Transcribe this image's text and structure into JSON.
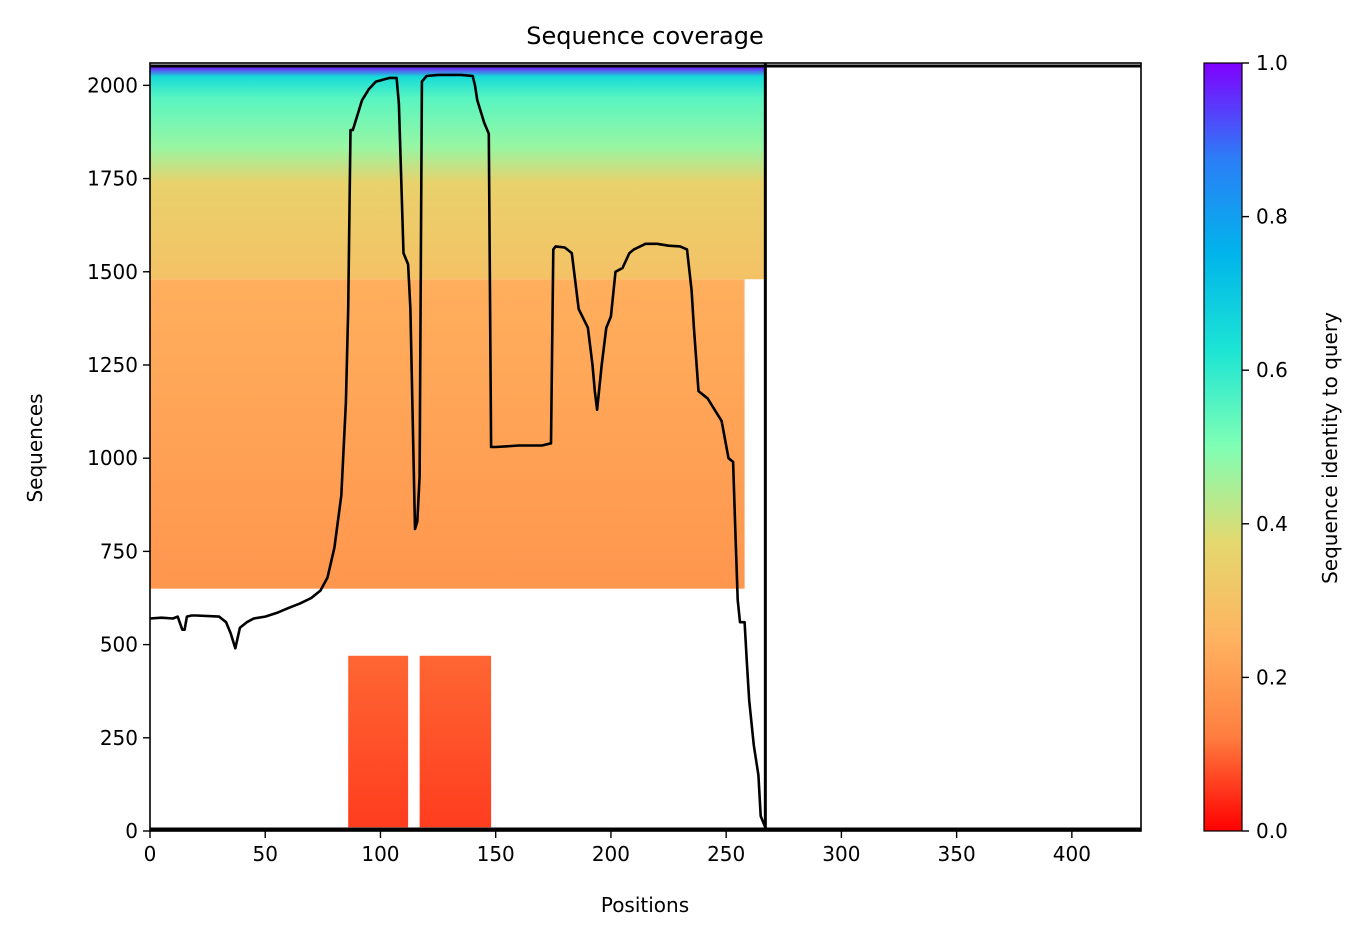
{
  "chart_data": {
    "type": "heatmap",
    "title": "Sequence coverage",
    "xlabel": "Positions",
    "ylabel": "Sequences",
    "xlim": [
      0,
      430
    ],
    "ylim": [
      0,
      2060
    ],
    "x_ticks": [
      0,
      50,
      100,
      150,
      200,
      250,
      300,
      350,
      400
    ],
    "y_ticks": [
      0,
      250,
      500,
      750,
      1000,
      1250,
      1500,
      1750,
      2000
    ],
    "colorbar": {
      "label": "Sequence identity to query",
      "range": [
        0,
        1
      ],
      "ticks": [
        "0.0",
        "0.2",
        "0.4",
        "0.6",
        "0.8",
        "1.0"
      ],
      "colormap": "rainbow_r",
      "colors": [
        "#ff0000",
        "#ff7f40",
        "#ffb360",
        "#e4d86e",
        "#80ffb4",
        "#1ce5d4",
        "#00b5eb",
        "#2c7ef7",
        "#8000ff"
      ]
    },
    "query_length": 267,
    "coverage_blocks": [
      {
        "x": [
          0,
          267
        ],
        "seq": [
          1480,
          2052
        ],
        "identity_top": 1.0,
        "identity_bottom": 0.3
      },
      {
        "x": [
          0,
          258
        ],
        "seq": [
          650,
          1480
        ],
        "identity_top": 0.24,
        "identity_bottom": 0.18
      },
      {
        "x": [
          86,
          112
        ],
        "seq": [
          10,
          470
        ],
        "identity_top": 0.1,
        "identity_bottom": 0.06
      },
      {
        "x": [
          117,
          148
        ],
        "seq": [
          10,
          470
        ],
        "identity_top": 0.1,
        "identity_bottom": 0.06
      }
    ],
    "coverage_series": {
      "name": "coverage",
      "x": [
        0,
        5,
        10,
        12,
        14,
        15,
        16,
        18,
        20,
        30,
        33,
        35,
        37,
        39,
        42,
        45,
        50,
        55,
        60,
        65,
        70,
        74,
        77,
        80,
        83,
        85,
        86,
        87,
        88,
        90,
        92,
        95,
        98,
        101,
        104,
        107,
        108,
        110,
        112,
        113,
        115,
        116,
        117,
        118,
        120,
        125,
        130,
        135,
        140,
        141,
        142,
        145,
        147,
        148,
        150,
        155,
        160,
        165,
        170,
        174,
        175,
        176,
        180,
        183,
        186,
        190,
        192,
        193,
        194,
        196,
        198,
        200,
        202,
        205,
        208,
        210,
        215,
        220,
        225,
        230,
        233,
        235,
        236,
        238,
        240,
        242,
        245,
        248,
        251,
        253,
        254,
        255,
        256,
        258,
        259,
        260,
        262,
        264,
        265,
        267,
        267.5
      ],
      "y": [
        570,
        572,
        570,
        575,
        540,
        540,
        575,
        578,
        578,
        575,
        560,
        530,
        490,
        545,
        560,
        570,
        575,
        585,
        598,
        610,
        625,
        645,
        680,
        760,
        900,
        1150,
        1400,
        1880,
        1880,
        1920,
        1960,
        1990,
        2010,
        2015,
        2020,
        2020,
        1950,
        1550,
        1520,
        1400,
        810,
        830,
        950,
        2010,
        2025,
        2028,
        2028,
        2028,
        2025,
        2000,
        1960,
        1900,
        1870,
        1030,
        1030,
        1032,
        1034,
        1034,
        1034,
        1040,
        1560,
        1568,
        1565,
        1550,
        1400,
        1350,
        1250,
        1180,
        1130,
        1250,
        1350,
        1380,
        1500,
        1510,
        1550,
        1560,
        1575,
        1575,
        1570,
        1568,
        1560,
        1450,
        1350,
        1180,
        1170,
        1160,
        1130,
        1100,
        1000,
        990,
        800,
        620,
        560,
        560,
        450,
        350,
        230,
        150,
        40,
        10,
        5
      ]
    }
  }
}
